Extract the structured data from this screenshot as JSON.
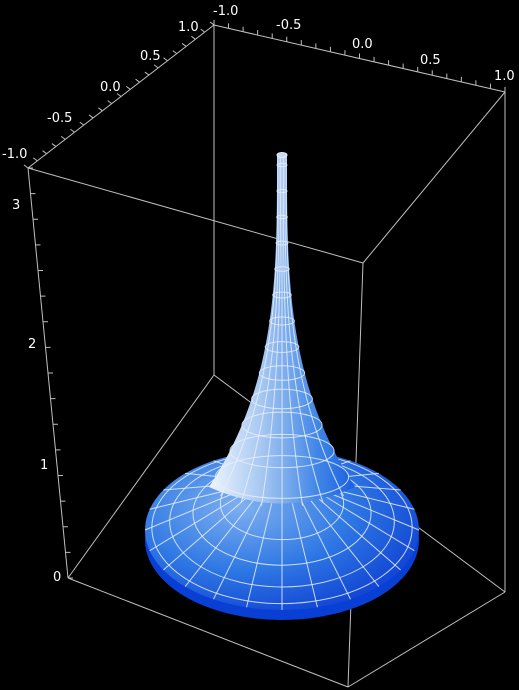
{
  "chart_data": {
    "type": "surface3d",
    "surface": "pseudosphere",
    "title": "",
    "x_axis": {
      "ticks": [
        "-1.0",
        "-0.5",
        "0.0",
        "0.5",
        "1.0"
      ],
      "range": [
        -1,
        1
      ]
    },
    "y_axis": {
      "ticks": [
        "-1.0",
        "-0.5",
        "0.0",
        "0.5",
        "1.0"
      ],
      "range": [
        -1,
        1
      ]
    },
    "z_axis": {
      "ticks": [
        "0",
        "1",
        "2",
        "3"
      ],
      "range": [
        0,
        3.2
      ]
    },
    "grid": false,
    "box": true,
    "colors": {
      "background": "#000000",
      "surface_light": "#c6dcf6",
      "surface_mid": "#4a8ee8",
      "surface_dark": "#0a3fd6",
      "mesh": "#e8eef8",
      "box": "#bfbfbf",
      "text": "#ffffff"
    }
  }
}
